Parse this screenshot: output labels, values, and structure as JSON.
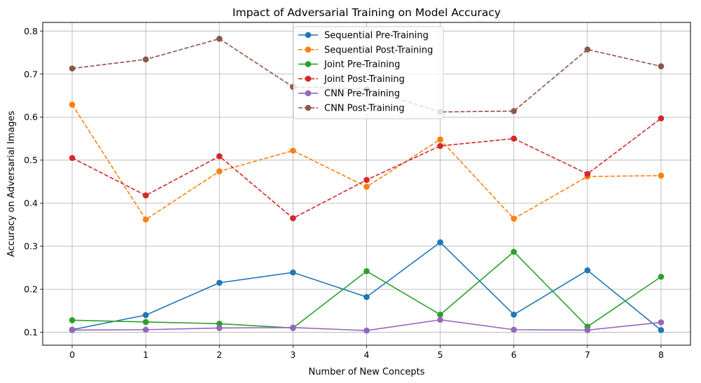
{
  "chart_data": {
    "type": "line",
    "title": "Impact of Adversarial Training on Model Accuracy",
    "xlabel": "Number of New Concepts",
    "ylabel": "Accuracy on Adversarial Images",
    "x": [
      0,
      1,
      2,
      3,
      4,
      5,
      6,
      7,
      8
    ],
    "xlim": [
      -0.4,
      8.4
    ],
    "ylim": [
      0.07,
      0.82
    ],
    "xticks": [
      "0",
      "1",
      "2",
      "3",
      "4",
      "5",
      "6",
      "7",
      "8"
    ],
    "yticks": [
      "0.1",
      "0.2",
      "0.3",
      "0.4",
      "0.5",
      "0.6",
      "0.7",
      "0.8"
    ],
    "grid": true,
    "legend_position": "top-center",
    "series": [
      {
        "name": "Sequential Pre-Training",
        "color": "#1f77b4",
        "dashed": false,
        "values": [
          0.106,
          0.14,
          0.215,
          0.239,
          0.182,
          0.309,
          0.141,
          0.244,
          0.105
        ]
      },
      {
        "name": "Sequential Post-Training",
        "color": "#ff7f0e",
        "dashed": true,
        "values": [
          0.629,
          0.362,
          0.474,
          0.522,
          0.438,
          0.548,
          0.364,
          0.462,
          0.464
        ]
      },
      {
        "name": "Joint Pre-Training",
        "color": "#2ca02c",
        "dashed": false,
        "values": [
          0.128,
          0.124,
          0.12,
          0.11,
          0.242,
          0.141,
          0.287,
          0.113,
          0.229
        ]
      },
      {
        "name": "Joint Post-Training",
        "color": "#d62728",
        "dashed": true,
        "values": [
          0.505,
          0.418,
          0.509,
          0.365,
          0.454,
          0.533,
          0.55,
          0.468,
          0.597
        ]
      },
      {
        "name": "CNN Pre-Training",
        "color": "#9467bd",
        "dashed": false,
        "values": [
          0.105,
          0.106,
          0.11,
          0.111,
          0.104,
          0.129,
          0.106,
          0.105,
          0.123
        ]
      },
      {
        "name": "CNN Post-Training",
        "color": "#8c564b",
        "dashed": true,
        "values": [
          0.713,
          0.734,
          0.782,
          0.67,
          0.665,
          0.612,
          0.614,
          0.757,
          0.718
        ]
      }
    ]
  }
}
